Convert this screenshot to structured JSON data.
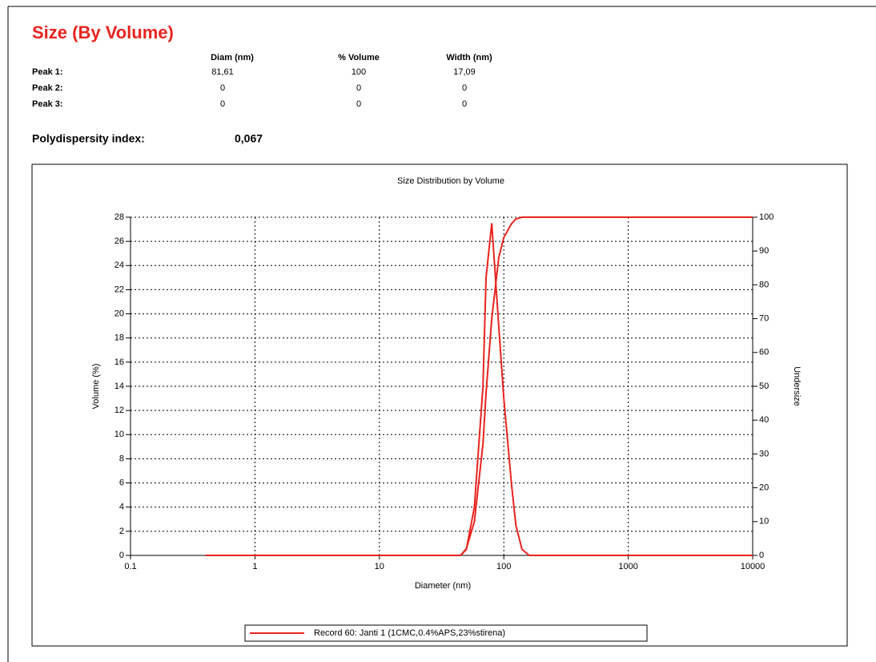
{
  "report": {
    "title": "Size (By Volume)",
    "columns": [
      "Diam (nm)",
      "% Volume",
      "Width (nm)"
    ],
    "rows": [
      [
        "Peak 1:",
        "81,61",
        "100",
        "17,09"
      ],
      [
        "Peak 2:",
        "0",
        "0",
        "0"
      ],
      [
        "Peak 3:",
        "0",
        "0",
        "0"
      ]
    ],
    "pdi_label": "Polydispersity index:",
    "pdi_value": "0,067"
  },
  "chart_data": {
    "type": "line",
    "title": "Size Distribution by Volume",
    "x_label": "Diameter (nm)",
    "y_label": "Volume (%)",
    "y2_label": "Undersize",
    "x": [
      0.4,
      45,
      50,
      58,
      68,
      72,
      80,
      91,
      100,
      115,
      125,
      140,
      160,
      10000
    ],
    "series": [
      {
        "name": "Record 60: Janti 1 (1CMC,0.4%APS,23%stirena)",
        "color": "#e8241e",
        "values": [
          0,
          0,
          0.5,
          4,
          14,
          23,
          27.5,
          19,
          13,
          6,
          2.5,
          0.5,
          0,
          0
        ]
      },
      {
        "color": "#e8241e",
        "axis": "y2",
        "values": [
          0,
          0,
          2,
          10,
          33,
          48,
          70,
          88,
          94,
          98,
          99.5,
          100,
          100,
          100
        ]
      }
    ],
    "xlog": true,
    "xlim": [
      0.1,
      10000
    ],
    "xticks": [
      0.1,
      1,
      10,
      100,
      1000,
      10000
    ],
    "ylim": [
      0,
      28
    ],
    "yticks": [
      0,
      2,
      4,
      6,
      8,
      10,
      12,
      14,
      16,
      18,
      20,
      22,
      24,
      26,
      28
    ],
    "y2lim": [
      0,
      100
    ],
    "y2ticks": [
      0,
      10,
      20,
      30,
      40,
      50,
      60,
      70,
      80,
      90,
      100
    ],
    "grid": true
  }
}
